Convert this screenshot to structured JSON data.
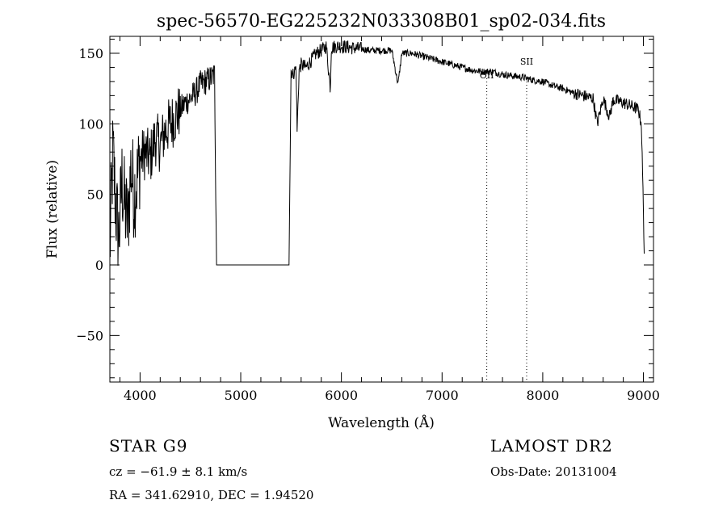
{
  "chart_data": {
    "type": "line",
    "title": "spec-56570-EG225232N033308B01_sp02-034.fits",
    "xlabel": "Wavelength (Å)",
    "ylabel": "Flux (relative)",
    "xlim": [
      3700,
      9100
    ],
    "ylim": [
      -83,
      162
    ],
    "xticks": [
      4000,
      5000,
      6000,
      7000,
      8000,
      9000
    ],
    "yticks": [
      -50,
      0,
      50,
      100,
      150
    ],
    "grid": false,
    "line_color": "#000000",
    "series": [
      {
        "x": [
          3700,
          3730,
          3760,
          3790,
          3820,
          3850,
          3880,
          3910,
          3940,
          3970,
          4000,
          4050,
          4100,
          4150,
          4200,
          4250,
          4300,
          4350,
          4400,
          4450,
          4500,
          4550,
          4600,
          4650,
          4700,
          4740,
          4760,
          4800,
          5000,
          5200,
          5400,
          5480,
          5500,
          5520,
          5550,
          5560,
          5580,
          5600,
          5650,
          5700,
          5750,
          5800,
          5850,
          5890,
          5900,
          5950,
          6000,
          6100,
          6200,
          6300,
          6400,
          6500,
          6563,
          6600,
          6700,
          6800,
          6900,
          7000,
          7100,
          7200,
          7300,
          7400,
          7500,
          7600,
          7700,
          7800,
          7900,
          8000,
          8100,
          8200,
          8300,
          8400,
          8500,
          8542,
          8600,
          8662,
          8700,
          8800,
          8900,
          8950,
          8980,
          9000,
          9010
        ],
        "y": [
          10,
          80,
          40,
          20,
          60,
          40,
          30,
          70,
          50,
          60,
          75,
          80,
          75,
          90,
          85,
          95,
          100,
          105,
          110,
          115,
          118,
          122,
          128,
          130,
          132,
          135,
          0,
          0,
          0,
          0,
          0,
          0,
          138,
          135,
          140,
          95,
          138,
          142,
          140,
          145,
          150,
          152,
          155,
          125,
          154,
          155,
          155,
          154,
          153,
          152,
          152,
          152,
          128,
          150,
          150,
          148,
          146,
          144,
          142,
          140,
          138,
          137,
          137,
          135,
          134,
          133,
          131,
          130,
          127,
          125,
          122,
          120,
          118,
          100,
          118,
          105,
          117,
          115,
          112,
          110,
          100,
          40,
          0
        ]
      }
    ],
    "line_markers": [
      {
        "label": "OII",
        "x": 7444
      },
      {
        "label": "SII",
        "x": 7840
      }
    ]
  },
  "info": {
    "object_class": "STAR   G9",
    "cz": "cz = −61.9 ± 8.1 km/s",
    "radec": "RA = 341.62910, DEC =   1.94520",
    "survey": "LAMOST DR2",
    "obs_date": "Obs-Date: 20131004"
  }
}
